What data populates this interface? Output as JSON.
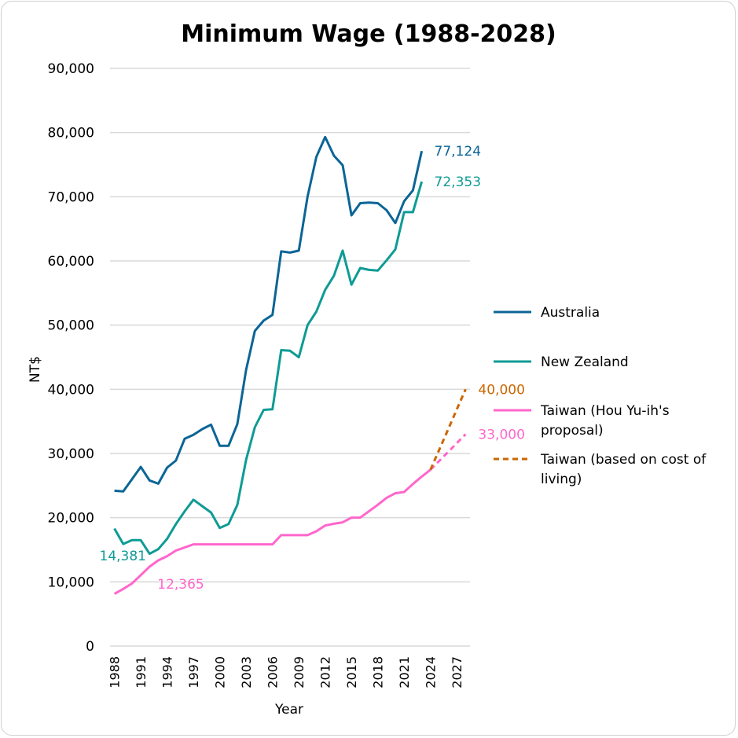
{
  "chart_data": {
    "type": "line",
    "title": "Minimum Wage (1988-2028)",
    "xlabel": "Year",
    "ylabel": "NT$",
    "ylim": [
      0,
      90000
    ],
    "yticks": [
      0,
      10000,
      20000,
      30000,
      40000,
      50000,
      60000,
      70000,
      80000,
      90000
    ],
    "ytick_labels": [
      "0",
      "10,000",
      "20,000",
      "30,000",
      "40,000",
      "50,000",
      "60,000",
      "70,000",
      "80,000",
      "90,000"
    ],
    "x_categories_start": 1988,
    "x_categories_end": 2028,
    "xtick_labels": [
      "1988",
      "1991",
      "1994",
      "1997",
      "2000",
      "2003",
      "2006",
      "2009",
      "2012",
      "2015",
      "2018",
      "2021",
      "2024",
      "2027"
    ],
    "grid": true,
    "legend_position": "right",
    "series": [
      {
        "name": "Australia",
        "color": "#0b6596",
        "dashed": false,
        "start_year": 1988,
        "values": [
          24200,
          24100,
          26000,
          27900,
          25800,
          25300,
          27800,
          28900,
          32300,
          32900,
          33800,
          34500,
          31200,
          31200,
          34600,
          43000,
          49100,
          50700,
          51600,
          61500,
          61300,
          61600,
          70000,
          76200,
          79300,
          76400,
          74900,
          67100,
          69000,
          69100,
          69000,
          67900,
          65900,
          69300,
          71000,
          77124
        ]
      },
      {
        "name": "New Zealand",
        "color": "#0e9b95",
        "dashed": false,
        "start_year": 1988,
        "values": [
          18300,
          15900,
          16500,
          16500,
          14381,
          15100,
          16700,
          19000,
          21000,
          22800,
          21800,
          20800,
          18400,
          19000,
          22000,
          29000,
          34100,
          36800,
          36900,
          46100,
          46000,
          45000,
          50000,
          52100,
          55500,
          57700,
          61600,
          56300,
          58900,
          58600,
          58500,
          60100,
          61800,
          67600,
          67600,
          72353
        ]
      },
      {
        "name": "Taiwan (Hou Yu-ih's proposal)",
        "color": "#ff66cc",
        "dashed": false,
        "start_year": 1988,
        "values": [
          8130,
          8900,
          9750,
          11040,
          12365,
          13350,
          14010,
          14880,
          15360,
          15840,
          15840,
          15840,
          15840,
          15840,
          15840,
          15840,
          15840,
          15840,
          15840,
          17280,
          17280,
          17280,
          17280,
          17880,
          18780,
          19047,
          19273,
          20008,
          20008,
          21009,
          22000,
          23100,
          23800,
          24000,
          25250,
          26400,
          27470
        ],
        "projection": {
          "start_year": 2024,
          "values": [
            27470,
            28853,
            30235,
            31618,
            33000
          ]
        }
      },
      {
        "name": "Taiwan (based on cost of living)",
        "color": "#cc6600",
        "dashed": true,
        "start_year": 2024,
        "values": [
          27470,
          30603,
          33735,
          36868,
          40000
        ]
      }
    ],
    "annotations": [
      {
        "text": "77,124",
        "series": "Australia",
        "year": 2023,
        "value": 77124
      },
      {
        "text": "72,353",
        "series": "New Zealand",
        "year": 2023,
        "value": 72353
      },
      {
        "text": "14,381",
        "series": "New Zealand",
        "year": 1992,
        "value": 14381
      },
      {
        "text": "12,365",
        "series": "Taiwan (Hou Yu-ih's proposal)",
        "year": 1992,
        "value": 12365
      },
      {
        "text": "40,000",
        "series": "Taiwan (based on cost of living)",
        "year": 2028,
        "value": 40000
      },
      {
        "text": "33,000",
        "series": "Taiwan (Hou Yu-ih's proposal)",
        "year": 2028,
        "value": 33000
      }
    ],
    "legend": [
      {
        "label_lines": [
          "Australia"
        ]
      },
      {
        "label_lines": [
          "New Zealand"
        ]
      },
      {
        "label_lines": [
          "Taiwan (Hou Yu-ih's",
          "proposal)"
        ]
      },
      {
        "label_lines": [
          "Taiwan (based on cost of",
          "living)"
        ]
      }
    ]
  }
}
